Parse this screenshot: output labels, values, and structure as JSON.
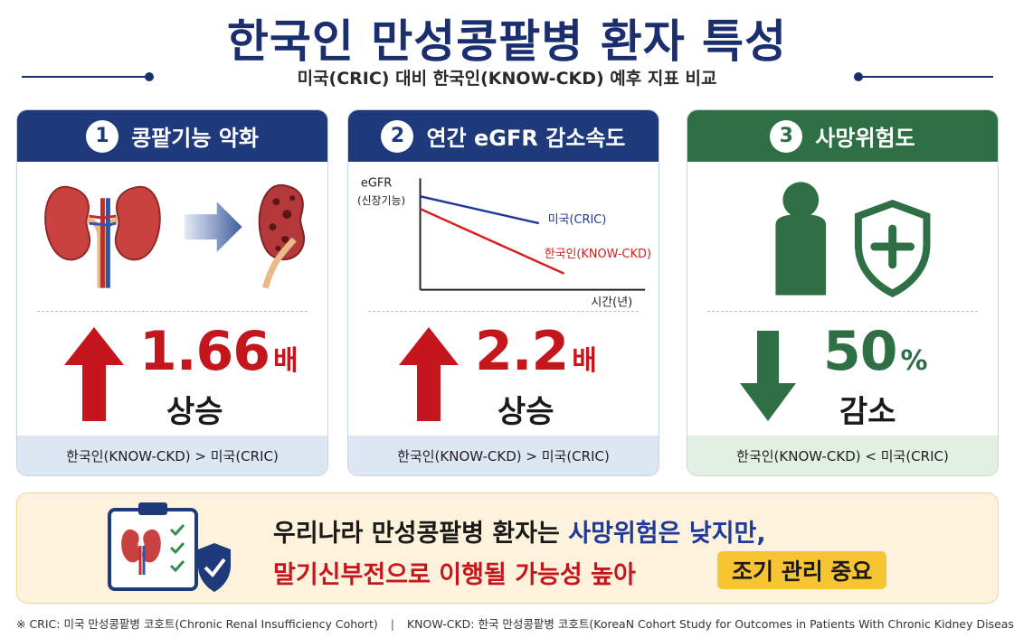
{
  "title": "한국인 만성콩팥병 환자 특성",
  "subtitle": "미국(CRIC) 대비 한국인(KNOW-CKD) 예후 지표 비교",
  "colors": {
    "navy": "#1f3a7a",
    "green": "#2f6f46",
    "red": "#c4161c",
    "highlight": "#f7c531"
  },
  "cards": [
    {
      "number": "1",
      "heading": "콩팥기능 악화",
      "icons": [
        "healthy-kidney-icon",
        "arrow-right-icon",
        "damaged-kidney-icon"
      ],
      "value": "1.66",
      "unit": "배",
      "direction": "up",
      "change_label": "상승",
      "comparison": "한국인(KNOW-CKD) > 미국(CRIC)"
    },
    {
      "number": "2",
      "heading": "연간 eGFR 감소속도",
      "graph": {
        "y_label_line1": "eGFR",
        "y_label_line2": "(신장기능)",
        "x_label": "시간(년)",
        "series": [
          "미국(CRIC)",
          "한국인(KNOW-CKD)"
        ]
      },
      "value": "2.2",
      "unit": "배",
      "direction": "up",
      "change_label": "상승",
      "comparison": "한국인(KNOW-CKD) > 미국(CRIC)"
    },
    {
      "number": "3",
      "heading": "사망위험도",
      "icons": [
        "person-shield-icon"
      ],
      "value": "50",
      "unit": "%",
      "direction": "down",
      "change_label": "감소",
      "comparison": "한국인(KNOW-CKD) < 미국(CRIC)"
    }
  ],
  "banner": {
    "line1_prefix": "우리나라 만성콩팥병 환자는 ",
    "line1_highlight": "사망위험은 낮지만,",
    "line2": "말기신부전으로 이행될 가능성 높아",
    "badge": "조기 관리 중요",
    "icons": [
      "clipboard-checklist-icon",
      "kidney-icon",
      "shield-check-icon"
    ]
  },
  "footnote": {
    "cric": "※ CRIC: 미국 만성콩팥병 코호트(Chronic Renal Insufficiency Cohort)",
    "separator": "|",
    "know_ckd": "KNOW-CKD: 한국 만성콩팥병 코호트(KoreaN Cohort Study for Outcomes in Patients With Chronic Kidney Disease)"
  }
}
